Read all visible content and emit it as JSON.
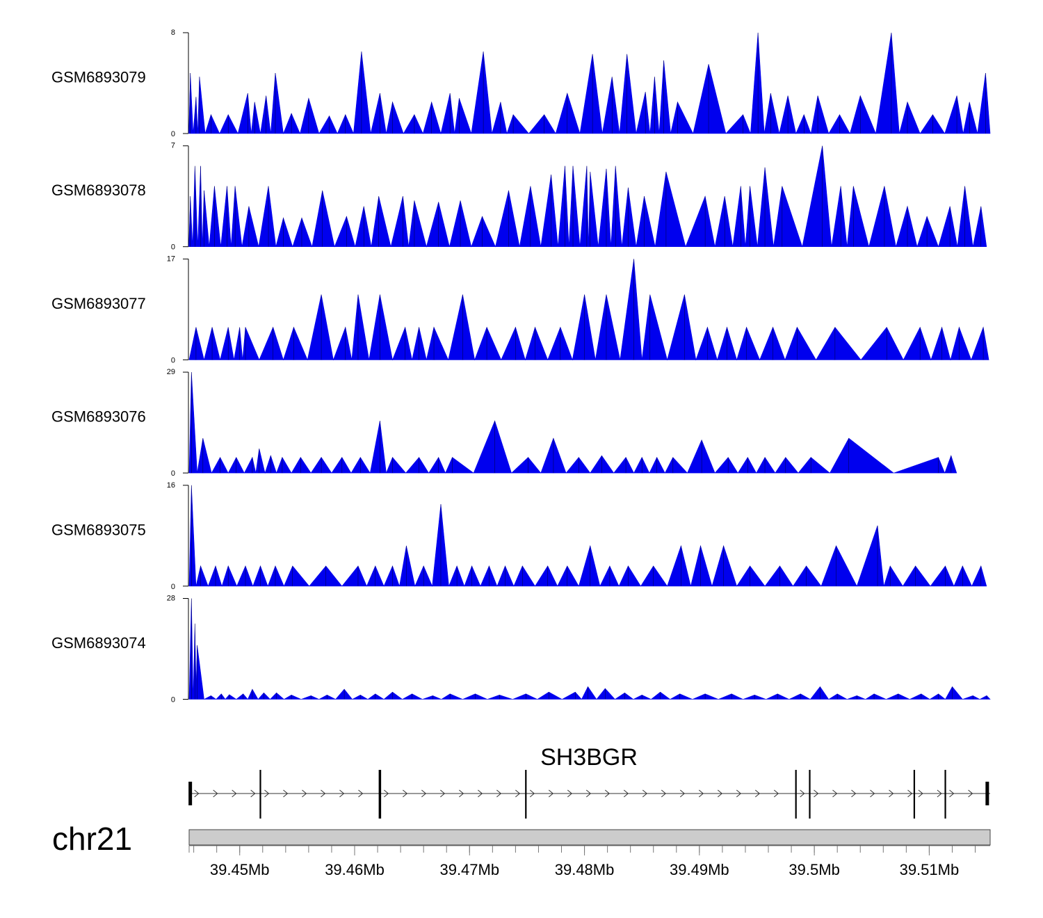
{
  "chart_data": {
    "type": "area",
    "title": "",
    "xlabel": "",
    "ylabel": "",
    "chromosome": "chr21",
    "x_range_mb": [
      39.4456,
      39.5153
    ],
    "x_ticks": [
      {
        "value": 39.45,
        "label": "39.45Mb"
      },
      {
        "value": 39.46,
        "label": "39.46Mb"
      },
      {
        "value": 39.47,
        "label": "39.47Mb"
      },
      {
        "value": 39.48,
        "label": "39.48Mb"
      },
      {
        "value": 39.49,
        "label": "39.49Mb"
      },
      {
        "value": 39.5,
        "label": "39.5Mb"
      },
      {
        "value": 39.51,
        "label": "39.51Mb"
      }
    ],
    "series_color": "#0000ee",
    "tracks": [
      {
        "name": "GSM6893079",
        "ymin": 0,
        "ymax": 8,
        "ymin_label": "0",
        "ymax_label": "8",
        "peaks": [
          [
            39.4457,
            4.8
          ],
          [
            39.4462,
            2.9
          ],
          [
            39.4465,
            4.5
          ],
          [
            39.4475,
            1.5
          ],
          [
            39.449,
            1.5
          ],
          [
            39.4507,
            3.2
          ],
          [
            39.4513,
            2.5
          ],
          [
            39.4523,
            3.0
          ],
          [
            39.4531,
            4.8
          ],
          [
            39.4545,
            1.6
          ],
          [
            39.456,
            2.8
          ],
          [
            39.4578,
            1.4
          ],
          [
            39.4592,
            1.5
          ],
          [
            39.4606,
            6.5
          ],
          [
            39.4622,
            3.2
          ],
          [
            39.4633,
            2.5
          ],
          [
            39.4652,
            1.5
          ],
          [
            39.4667,
            2.5
          ],
          [
            39.4683,
            3.2
          ],
          [
            39.4691,
            2.8
          ],
          [
            39.4712,
            6.5
          ],
          [
            39.4727,
            2.5
          ],
          [
            39.4738,
            1.5
          ],
          [
            39.4765,
            1.5
          ],
          [
            39.4785,
            3.2
          ],
          [
            39.4807,
            6.3
          ],
          [
            39.4824,
            4.5
          ],
          [
            39.4837,
            6.3
          ],
          [
            39.4853,
            3.3
          ],
          [
            39.4861,
            4.5
          ],
          [
            39.4869,
            5.8
          ],
          [
            39.4881,
            2.5
          ],
          [
            39.4908,
            5.5
          ],
          [
            39.4938,
            1.5
          ],
          [
            39.4951,
            8.0
          ],
          [
            39.4962,
            3.2
          ],
          [
            39.4977,
            3.0
          ],
          [
            39.4991,
            1.5
          ],
          [
            39.5003,
            3.0
          ],
          [
            39.5022,
            1.5
          ],
          [
            39.504,
            3.0
          ],
          [
            39.5067,
            8.0
          ],
          [
            39.5081,
            2.5
          ],
          [
            39.5103,
            1.5
          ],
          [
            39.5124,
            3.0
          ],
          [
            39.5135,
            2.5
          ],
          [
            39.5149,
            4.8
          ]
        ]
      },
      {
        "name": "GSM6893078",
        "ymin": 0,
        "ymax": 7,
        "ymin_label": "0",
        "ymax_label": "7",
        "peaks": [
          [
            39.4457,
            3.5
          ],
          [
            39.4461,
            5.6
          ],
          [
            39.4466,
            5.6
          ],
          [
            39.4469,
            3.9
          ],
          [
            39.4478,
            4.2
          ],
          [
            39.4489,
            4.2
          ],
          [
            39.4496,
            4.2
          ],
          [
            39.4508,
            2.8
          ],
          [
            39.4525,
            4.2
          ],
          [
            39.4538,
            2.0
          ],
          [
            39.4554,
            2.0
          ],
          [
            39.4572,
            3.9
          ],
          [
            39.4593,
            2.1
          ],
          [
            39.4608,
            2.8
          ],
          [
            39.4621,
            3.5
          ],
          [
            39.4642,
            3.5
          ],
          [
            39.4652,
            3.2
          ],
          [
            39.4673,
            3.1
          ],
          [
            39.4692,
            3.2
          ],
          [
            39.4711,
            2.1
          ],
          [
            39.4734,
            3.9
          ],
          [
            39.4753,
            4.2
          ],
          [
            39.4771,
            5.0
          ],
          [
            39.4783,
            5.6
          ],
          [
            39.479,
            5.6
          ],
          [
            39.4802,
            5.6
          ],
          [
            39.4805,
            5.2
          ],
          [
            39.4819,
            5.4
          ],
          [
            39.4827,
            5.6
          ],
          [
            39.4838,
            4.1
          ],
          [
            39.4852,
            3.5
          ],
          [
            39.4871,
            5.2
          ],
          [
            39.4905,
            3.5
          ],
          [
            39.4922,
            3.5
          ],
          [
            39.4936,
            4.2
          ],
          [
            39.4944,
            4.2
          ],
          [
            39.4957,
            5.5
          ],
          [
            39.4972,
            4.2
          ],
          [
            39.5007,
            7.0
          ],
          [
            39.5023,
            4.2
          ],
          [
            39.5034,
            4.2
          ],
          [
            39.5061,
            4.2
          ],
          [
            39.5081,
            2.8
          ],
          [
            39.5098,
            2.1
          ],
          [
            39.5118,
            2.8
          ],
          [
            39.5131,
            4.2
          ],
          [
            39.5145,
            2.8
          ]
        ]
      },
      {
        "name": "GSM6893077",
        "ymin": 0,
        "ymax": 17,
        "ymin_label": "0",
        "ymax_label": "17",
        "peaks": [
          [
            39.4462,
            5.5
          ],
          [
            39.4476,
            5.5
          ],
          [
            39.449,
            5.5
          ],
          [
            39.45,
            5.5
          ],
          [
            39.4505,
            5.5
          ],
          [
            39.4529,
            5.5
          ],
          [
            39.4547,
            5.5
          ],
          [
            39.4571,
            11.0
          ],
          [
            39.4592,
            5.5
          ],
          [
            39.4603,
            11.0
          ],
          [
            39.4622,
            11.0
          ],
          [
            39.4644,
            5.5
          ],
          [
            39.4656,
            5.5
          ],
          [
            39.4669,
            5.5
          ],
          [
            39.4694,
            11.0
          ],
          [
            39.4715,
            5.5
          ],
          [
            39.474,
            5.5
          ],
          [
            39.4757,
            5.5
          ],
          [
            39.4779,
            5.5
          ],
          [
            39.48,
            11.0
          ],
          [
            39.4819,
            11.0
          ],
          [
            39.4843,
            17.0
          ],
          [
            39.4857,
            11.0
          ],
          [
            39.4887,
            11.0
          ],
          [
            39.4907,
            5.5
          ],
          [
            39.4924,
            5.5
          ],
          [
            39.4941,
            5.5
          ],
          [
            39.4964,
            5.5
          ],
          [
            39.4985,
            5.5
          ],
          [
            39.5018,
            5.5
          ],
          [
            39.5063,
            5.5
          ],
          [
            39.5092,
            5.5
          ],
          [
            39.5111,
            5.5
          ],
          [
            39.5126,
            5.5
          ],
          [
            39.5147,
            5.5
          ]
        ]
      },
      {
        "name": "GSM6893076",
        "ymin": 0,
        "ymax": 29,
        "ymin_label": "0",
        "ymax_label": "29",
        "peaks": [
          [
            39.4458,
            29.0
          ],
          [
            39.4468,
            10.0
          ],
          [
            39.4483,
            4.5
          ],
          [
            39.4497,
            4.5
          ],
          [
            39.4511,
            4.5
          ],
          [
            39.4517,
            7.0
          ],
          [
            39.4527,
            5.0
          ],
          [
            39.4537,
            4.5
          ],
          [
            39.4553,
            4.5
          ],
          [
            39.4571,
            4.5
          ],
          [
            39.4589,
            4.5
          ],
          [
            39.4605,
            4.5
          ],
          [
            39.4622,
            15.0
          ],
          [
            39.4633,
            4.5
          ],
          [
            39.4656,
            4.5
          ],
          [
            39.4673,
            4.5
          ],
          [
            39.4685,
            4.5
          ],
          [
            39.4722,
            15.0
          ],
          [
            39.4751,
            4.5
          ],
          [
            39.4773,
            10.0
          ],
          [
            39.4795,
            4.5
          ],
          [
            39.4815,
            5.0
          ],
          [
            39.4836,
            4.5
          ],
          [
            39.485,
            4.5
          ],
          [
            39.4863,
            4.5
          ],
          [
            39.4877,
            4.5
          ],
          [
            39.4902,
            9.5
          ],
          [
            39.4925,
            4.5
          ],
          [
            39.4942,
            4.5
          ],
          [
            39.4957,
            4.5
          ],
          [
            39.4975,
            4.5
          ],
          [
            39.4997,
            4.5
          ],
          [
            39.503,
            10.0
          ],
          [
            39.5108,
            4.5
          ],
          [
            39.5119,
            5.0
          ]
        ]
      },
      {
        "name": "GSM6893075",
        "ymin": 0,
        "ymax": 16,
        "ymin_label": "0",
        "ymax_label": "16",
        "peaks": [
          [
            39.4458,
            16.0
          ],
          [
            39.4466,
            3.2
          ],
          [
            39.4479,
            3.2
          ],
          [
            39.449,
            3.2
          ],
          [
            39.4505,
            3.2
          ],
          [
            39.4518,
            3.2
          ],
          [
            39.4531,
            3.2
          ],
          [
            39.4546,
            3.2
          ],
          [
            39.4575,
            3.2
          ],
          [
            39.4603,
            3.2
          ],
          [
            39.4618,
            3.2
          ],
          [
            39.4633,
            3.2
          ],
          [
            39.4645,
            6.4
          ],
          [
            39.466,
            3.2
          ],
          [
            39.4675,
            13.0
          ],
          [
            39.4689,
            3.2
          ],
          [
            39.4702,
            3.2
          ],
          [
            39.4717,
            3.2
          ],
          [
            39.4731,
            3.2
          ],
          [
            39.4746,
            3.2
          ],
          [
            39.4768,
            3.2
          ],
          [
            39.4785,
            3.2
          ],
          [
            39.4805,
            6.4
          ],
          [
            39.4822,
            3.2
          ],
          [
            39.4838,
            3.2
          ],
          [
            39.486,
            3.2
          ],
          [
            39.4884,
            6.4
          ],
          [
            39.4901,
            6.4
          ],
          [
            39.4921,
            6.4
          ],
          [
            39.4944,
            3.2
          ],
          [
            39.497,
            3.2
          ],
          [
            39.4993,
            3.2
          ],
          [
            39.5019,
            6.4
          ],
          [
            39.5055,
            9.6
          ],
          [
            39.5066,
            3.2
          ],
          [
            39.5088,
            3.2
          ],
          [
            39.5114,
            3.2
          ],
          [
            39.5129,
            3.2
          ],
          [
            39.5145,
            3.2
          ]
        ]
      },
      {
        "name": "GSM6893074",
        "ymin": 0,
        "ymax": 28,
        "ymin_label": "0",
        "ymax_label": "28",
        "peaks": [
          [
            39.4458,
            28.0
          ],
          [
            39.4461,
            21.0
          ],
          [
            39.4463,
            15.0
          ],
          [
            39.4475,
            1.0
          ],
          [
            39.4484,
            1.5
          ],
          [
            39.4491,
            1.3
          ],
          [
            39.4503,
            1.5
          ],
          [
            39.4511,
            2.8
          ],
          [
            39.4521,
            1.8
          ],
          [
            39.4532,
            1.8
          ],
          [
            39.4545,
            1.2
          ],
          [
            39.4562,
            1.0
          ],
          [
            39.4576,
            1.2
          ],
          [
            39.4591,
            2.8
          ],
          [
            39.4605,
            1.2
          ],
          [
            39.4618,
            1.5
          ],
          [
            39.4633,
            2.0
          ],
          [
            39.465,
            1.5
          ],
          [
            39.4668,
            1.0
          ],
          [
            39.4683,
            1.5
          ],
          [
            39.4705,
            1.5
          ],
          [
            39.4726,
            1.2
          ],
          [
            39.4749,
            1.5
          ],
          [
            39.4769,
            2.0
          ],
          [
            39.4792,
            2.0
          ],
          [
            39.4803,
            3.5
          ],
          [
            39.4818,
            3.0
          ],
          [
            39.4835,
            1.8
          ],
          [
            39.485,
            1.2
          ],
          [
            39.4866,
            2.0
          ],
          [
            39.4883,
            1.5
          ],
          [
            39.4905,
            1.5
          ],
          [
            39.4928,
            1.5
          ],
          [
            39.4948,
            1.2
          ],
          [
            39.4968,
            1.5
          ],
          [
            39.4988,
            1.5
          ],
          [
            39.5005,
            3.5
          ],
          [
            39.502,
            1.5
          ],
          [
            39.5037,
            1.0
          ],
          [
            39.5052,
            1.5
          ],
          [
            39.5073,
            1.5
          ],
          [
            39.5093,
            1.5
          ],
          [
            39.5108,
            1.5
          ],
          [
            39.512,
            3.5
          ],
          [
            39.5138,
            1.0
          ],
          [
            39.515,
            1.0
          ]
        ]
      }
    ],
    "gene": {
      "name": "SH3BGR",
      "start": 39.4457,
      "end": 39.5153,
      "strand": "+",
      "exons": [
        39.4457,
        39.4518,
        39.4622,
        39.4749,
        39.4984,
        39.4996,
        39.5087,
        39.5114,
        39.5152
      ]
    }
  }
}
